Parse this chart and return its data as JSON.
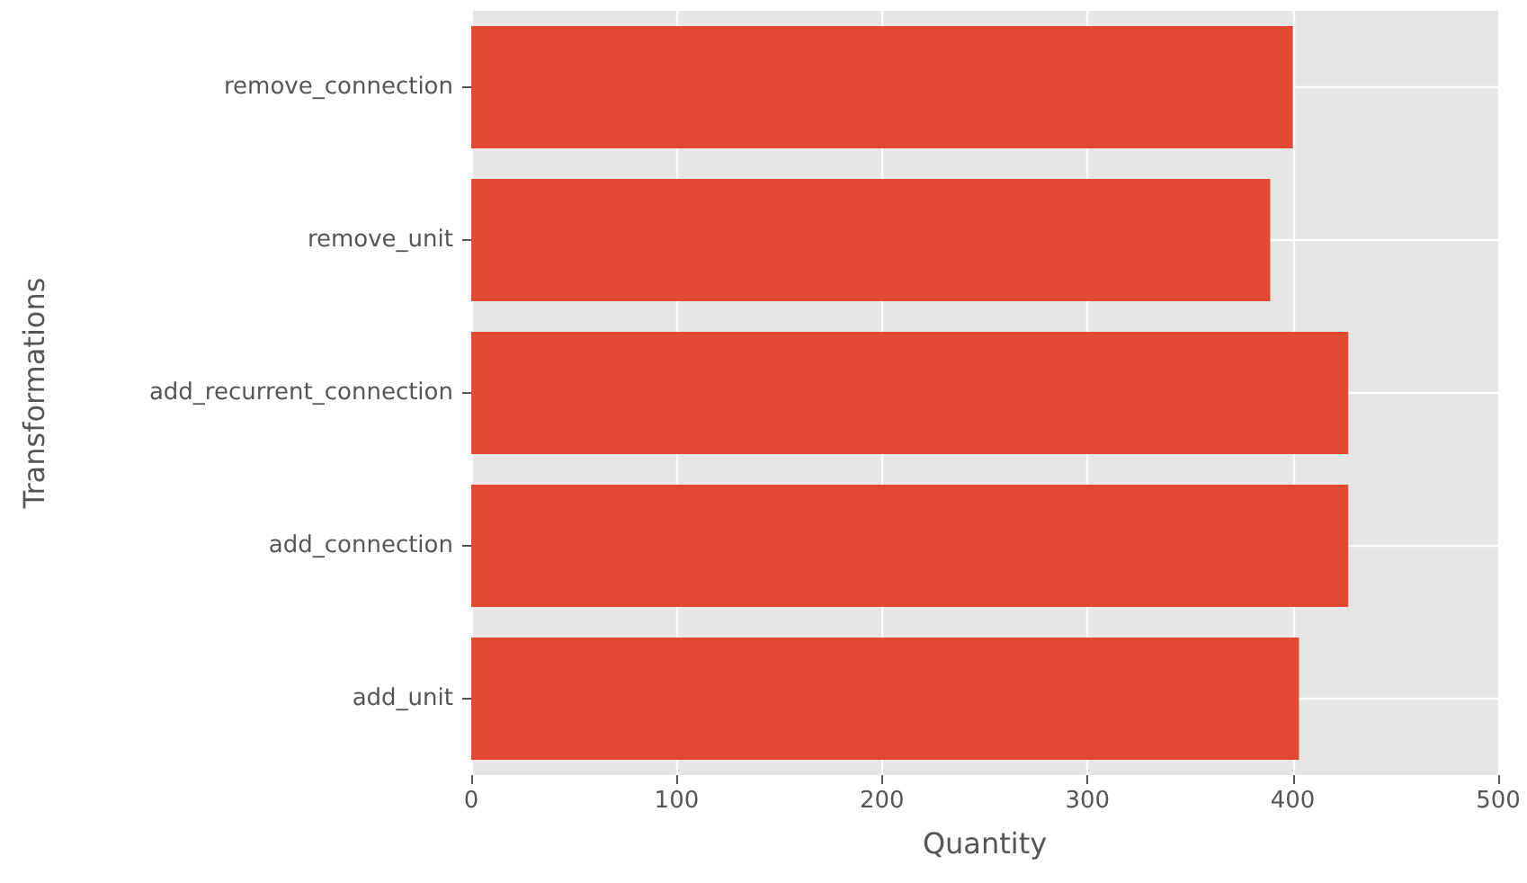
{
  "chart_data": {
    "type": "bar",
    "orientation": "horizontal",
    "xlabel": "Quantity",
    "ylabel": "Transformations",
    "categories": [
      "remove_connection",
      "remove_unit",
      "add_recurrent_connection",
      "add_connection",
      "add_unit"
    ],
    "values": [
      400,
      389,
      427,
      427,
      403
    ],
    "color": "#e24a33",
    "xlim": [
      0,
      500
    ],
    "xticks": [
      0,
      100,
      200,
      300,
      400,
      500
    ],
    "grid": true
  }
}
